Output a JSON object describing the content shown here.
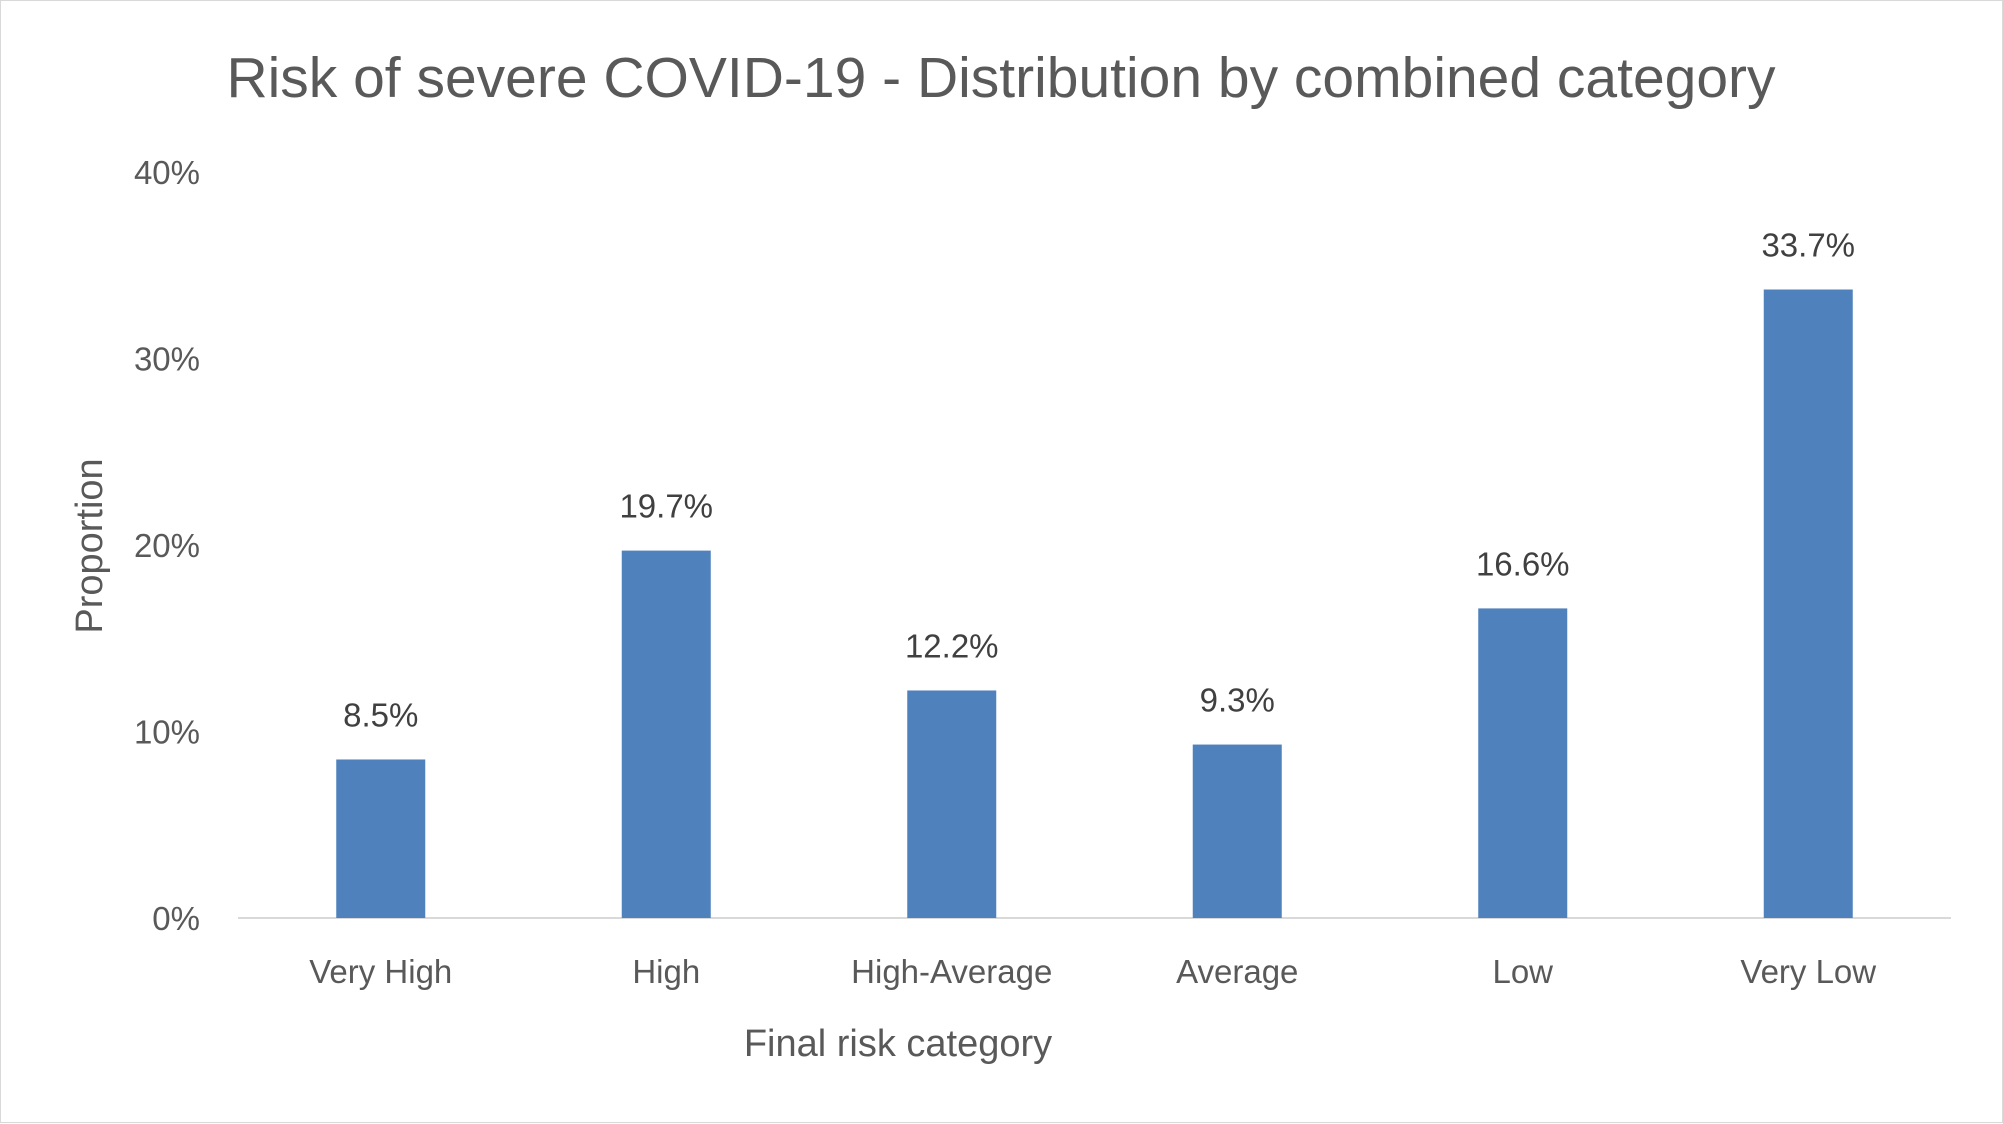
{
  "chart_data": {
    "type": "bar",
    "title": "Risk of severe COVID-19 - Distribution by combined category",
    "xlabel": "Final risk category",
    "ylabel": "Proportion",
    "categories": [
      "Very High",
      "High",
      "High-Average",
      "Average",
      "Low",
      "Very Low"
    ],
    "values": [
      8.5,
      19.7,
      12.2,
      9.3,
      16.6,
      33.7
    ],
    "data_labels": [
      "8.5%",
      "19.7%",
      "12.2%",
      "9.3%",
      "16.6%",
      "33.7%"
    ],
    "ylim": [
      0,
      40
    ],
    "yticks": [
      0,
      10,
      20,
      30,
      40
    ],
    "ytick_labels": [
      "0%",
      "10%",
      "20%",
      "30%",
      "40%"
    ],
    "grid": false,
    "legend": "none",
    "bar_color": "#4f81bd",
    "text_color": "#595959"
  }
}
